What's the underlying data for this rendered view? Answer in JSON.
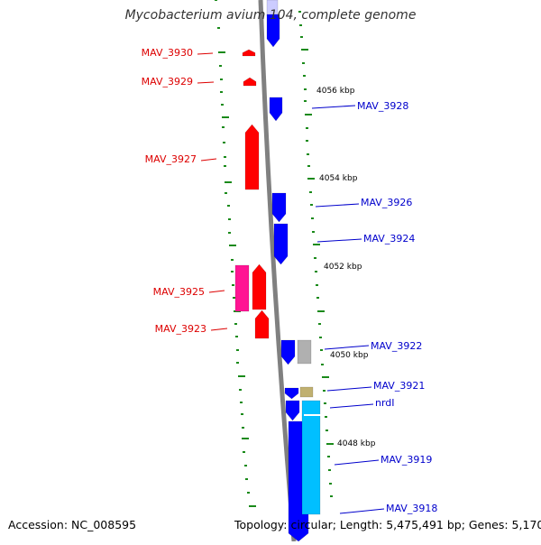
{
  "title": "Mycobacterium avium 104, complete genome",
  "footer": {
    "accession": "Accession: NC_008595",
    "topology": "Topology: circular; Length: 5,475,491 bp; Genes: 5,170"
  },
  "colors": {
    "backbone": "#808080",
    "tick": "#1a8a1a",
    "forward_gene": "#ff0000",
    "forward_label": "#dd0000",
    "reverse_gene": "#0000ff",
    "reverse_label": "#0000cc",
    "pink_feature": "#ff1493",
    "cyan_feature": "#00bfff",
    "grey_feature": "#b0b0b0",
    "tan_feature": "#c0b070",
    "kbp_label": "#000000"
  },
  "kbp_labels": [
    "4056 kbp",
    "4054 kbp",
    "4052 kbp",
    "4050 kbp",
    "4048 kbp"
  ],
  "forward_genes": [
    "MAV_3930",
    "MAV_3929",
    "MAV_3927",
    "MAV_3925",
    "MAV_3923"
  ],
  "reverse_genes": [
    "MAV_3928",
    "MAV_3926",
    "MAV_3924",
    "MAV_3922",
    "MAV_3921",
    "nrdI",
    "MAV_3919",
    "MAV_3918"
  ]
}
